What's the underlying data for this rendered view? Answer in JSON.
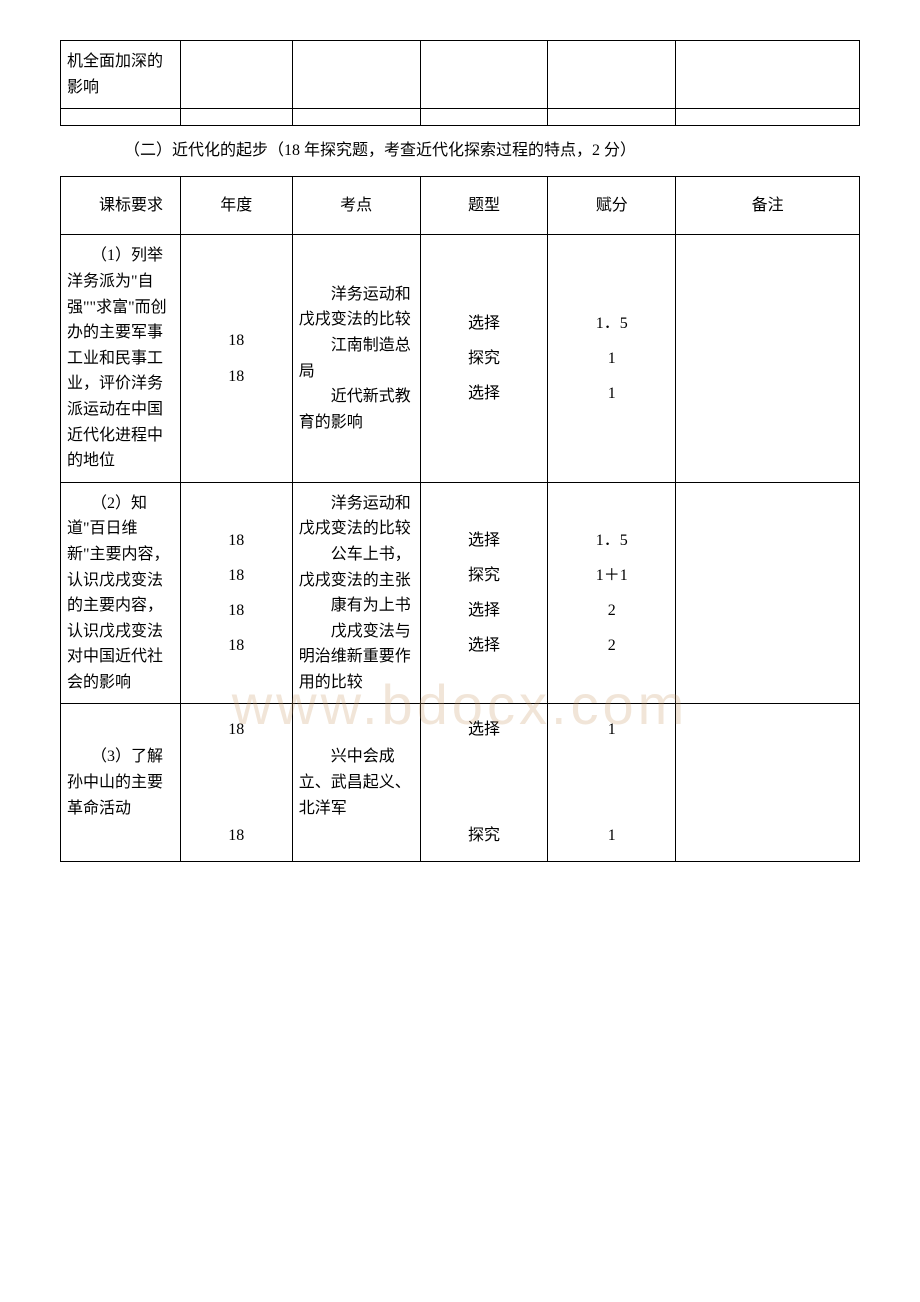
{
  "watermark": "www.bdocx.com",
  "table1": {
    "rows": [
      {
        "col1": "机全面加深的影响",
        "col2": "",
        "col3": "",
        "col4": "",
        "col5": "",
        "col6": ""
      },
      {
        "col1": "",
        "col2": "",
        "col3": "",
        "col4": "",
        "col5": "",
        "col6": ""
      }
    ]
  },
  "section_title": "（二）近代化的起步（18 年探究题，考查近代化探索过程的特点，2 分）",
  "table2": {
    "header": {
      "col1": "　　课标要求",
      "col2": "年度",
      "col3": "考点",
      "col4": "题型",
      "col5": "赋分",
      "col6": "备注"
    },
    "rows": [
      {
        "col1": "　　（1）列举洋务派为\"自强\"\"求富\"而创办的主要军事工业和民事工业，评价洋务派运动在中国近代化进程中的地位",
        "col2": "18\n18",
        "col3": "　　洋务运动和戊戌变法的比较\n　　江南制造总局\n　　近代新式教育的影响",
        "col4": "选择\n探究\n选择",
        "col5": "1．5\n1\n1",
        "col6": ""
      },
      {
        "col1": "　　（2）知道\"百日维新\"主要内容，认识戊戌变法的主要内容，认识戊戌变法对中国近代社会的影响",
        "col2": "18\n18\n18\n18",
        "col3": "　　洋务运动和戊戌变法的比较\n　　公车上书，戊戌变法的主张\n　　康有为上书\n　　戊戌变法与明治维新重要作用的比较",
        "col4": "选择\n探究\n选择\n选择",
        "col5": "1．5\n1＋1\n2\n2",
        "col6": ""
      },
      {
        "col1": "　　（3）了解孙中山的主要革命活动",
        "col2": "18\n\n\n18",
        "col3": "　　兴中会成立、武昌起义、北洋军",
        "col4": "选择\n\n\n探究",
        "col5": "1\n\n\n1",
        "col6": ""
      }
    ]
  }
}
